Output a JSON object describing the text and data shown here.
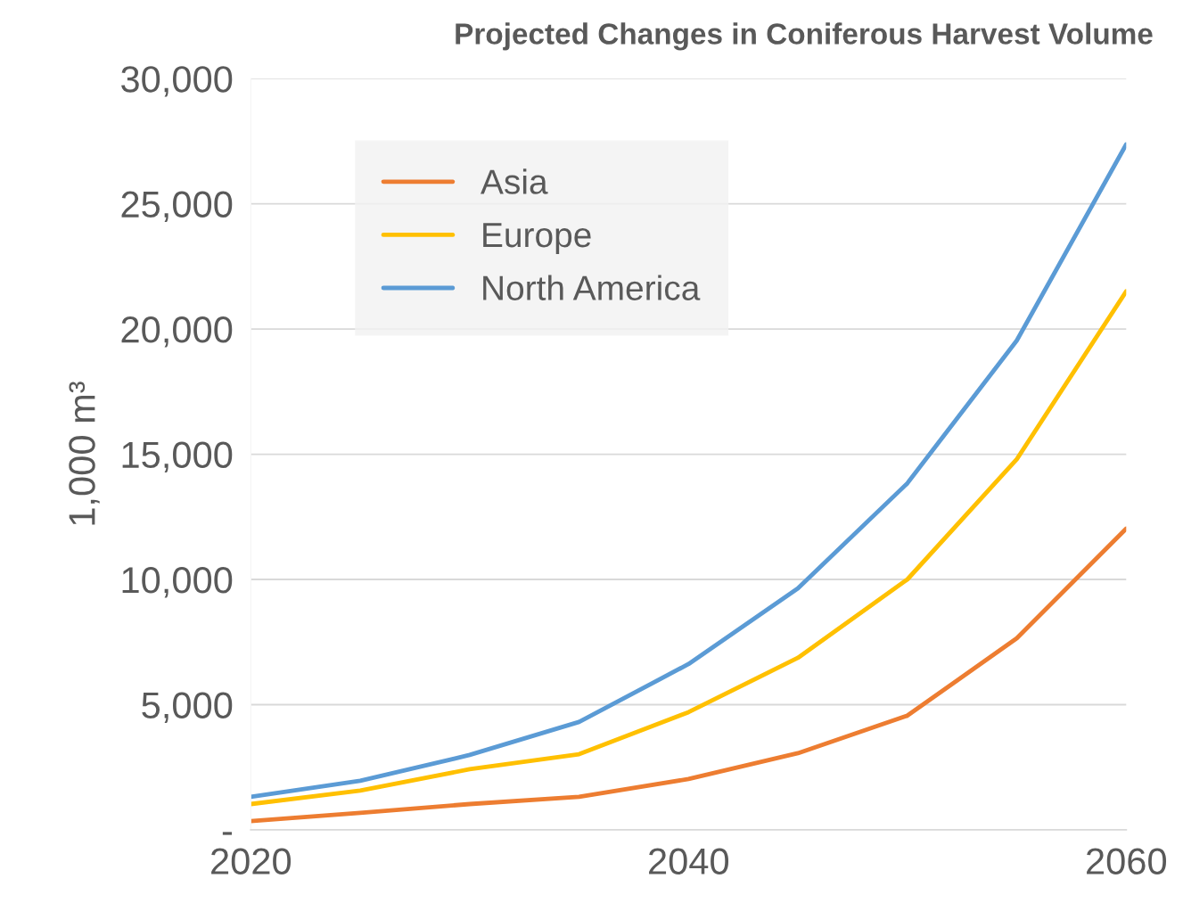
{
  "chart_data": {
    "type": "line",
    "title": "Projected Changes in Coniferous Harvest Volume",
    "ylabel": "1,000 m³",
    "x": [
      2020,
      2025,
      2030,
      2035,
      2040,
      2045,
      2050,
      2055,
      2060
    ],
    "series": [
      {
        "name": "Asia",
        "color": "#ed7d31",
        "values": [
          350,
          680,
          1030,
          1320,
          2030,
          3060,
          4560,
          7650,
          12030
        ]
      },
      {
        "name": "Europe",
        "color": "#ffc000",
        "values": [
          1030,
          1570,
          2420,
          3020,
          4700,
          6870,
          10000,
          14800,
          21500
        ]
      },
      {
        "name": "North America",
        "color": "#5b9bd5",
        "values": [
          1320,
          1960,
          2990,
          4310,
          6620,
          9640,
          13840,
          19540,
          27370
        ]
      }
    ],
    "xlim": [
      2020,
      2060
    ],
    "xticks": [
      2020,
      2040,
      2060
    ],
    "ylim": [
      0,
      30000
    ],
    "yticks": [
      {
        "value": 0,
        "label": "-"
      },
      {
        "value": 5000,
        "label": "5,000"
      },
      {
        "value": 10000,
        "label": "10,000"
      },
      {
        "value": 15000,
        "label": "15,000"
      },
      {
        "value": 20000,
        "label": "20,000"
      },
      {
        "value": 25000,
        "label": "25,000"
      },
      {
        "value": 30000,
        "label": "30,000"
      }
    ],
    "grid": "y",
    "legend": "top left",
    "marker": "none",
    "line_style": "solid"
  }
}
